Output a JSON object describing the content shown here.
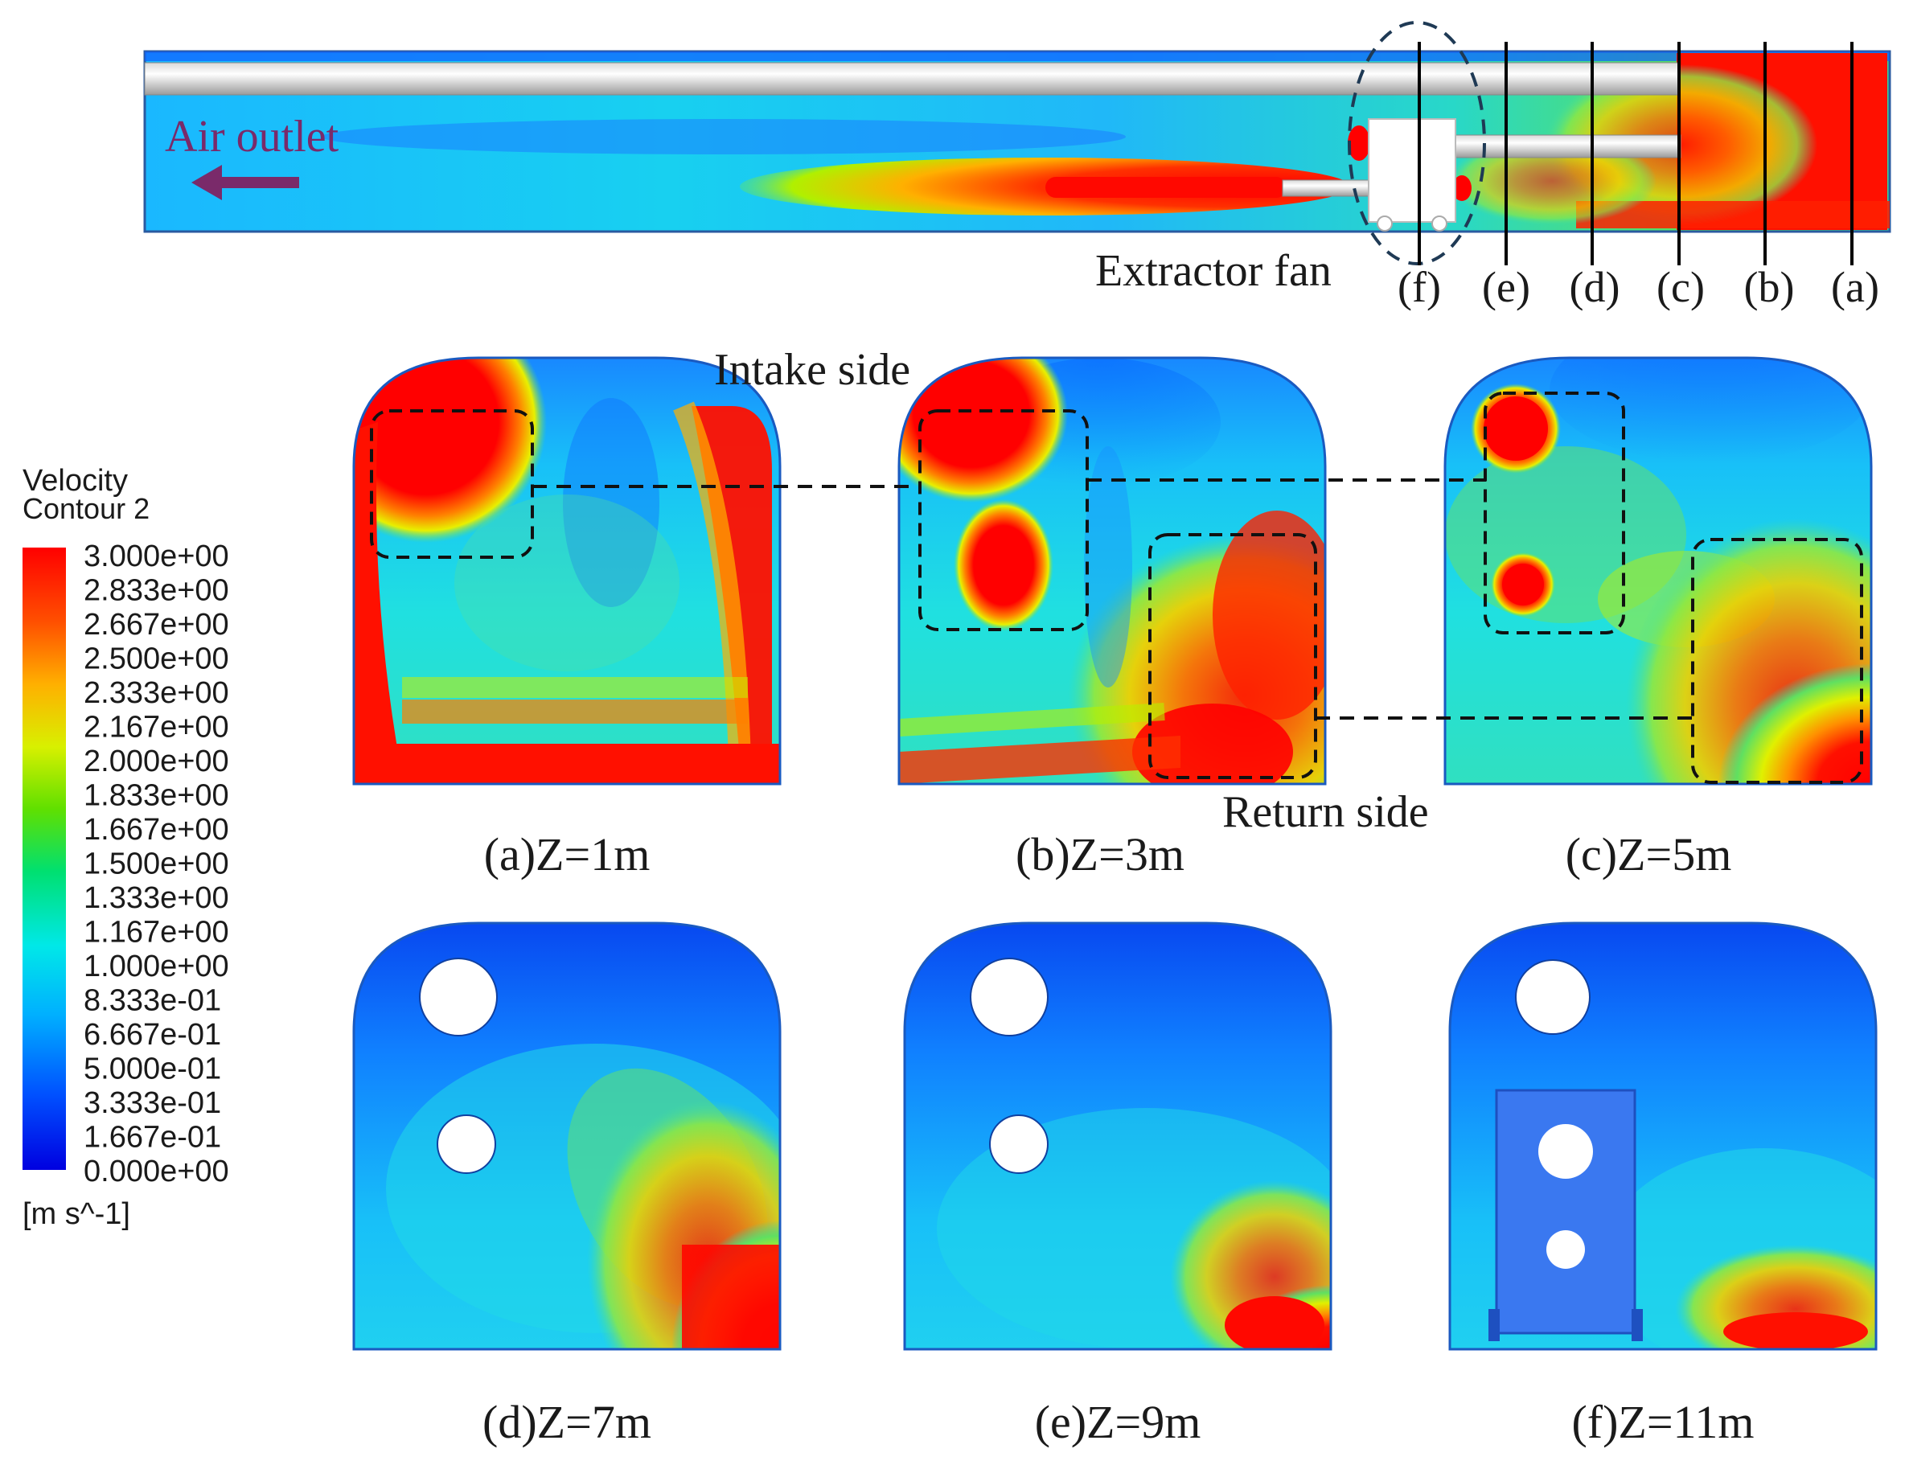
{
  "top_view": {
    "air_outlet_label": "Air outlet",
    "extractor_fan_label": "Extractor fan",
    "section_labels": [
      "(f)",
      "(e)",
      "(d)",
      "(c)",
      "(b)",
      "(a)"
    ]
  },
  "annotations": {
    "intake_side": "Intake side",
    "return_side": "Return side"
  },
  "legend": {
    "title_line1": "Velocity",
    "title_line2": "Contour 2",
    "ticks": [
      "3.000e+00",
      "2.833e+00",
      "2.667e+00",
      "2.500e+00",
      "2.333e+00",
      "2.167e+00",
      "2.000e+00",
      "1.833e+00",
      "1.667e+00",
      "1.500e+00",
      "1.333e+00",
      "1.167e+00",
      "1.000e+00",
      "8.333e-01",
      "6.667e-01",
      "5.000e-01",
      "3.333e-01",
      "1.667e-01",
      "0.000e+00"
    ],
    "unit": "[m s^-1]",
    "colors": [
      "#0000e0",
      "#0050ff",
      "#00b0ff",
      "#00e8e8",
      "#00e070",
      "#60e000",
      "#d8f000",
      "#ffb000",
      "#ff5000",
      "#ff0000"
    ],
    "range": [
      0,
      3
    ]
  },
  "panels": [
    {
      "caption": "(a)Z=1m"
    },
    {
      "caption": "(b)Z=3m"
    },
    {
      "caption": "(c)Z=5m"
    },
    {
      "caption": "(d)Z=7m"
    },
    {
      "caption": "(e)Z=9m"
    },
    {
      "caption": "(f)Z=11m"
    }
  ]
}
